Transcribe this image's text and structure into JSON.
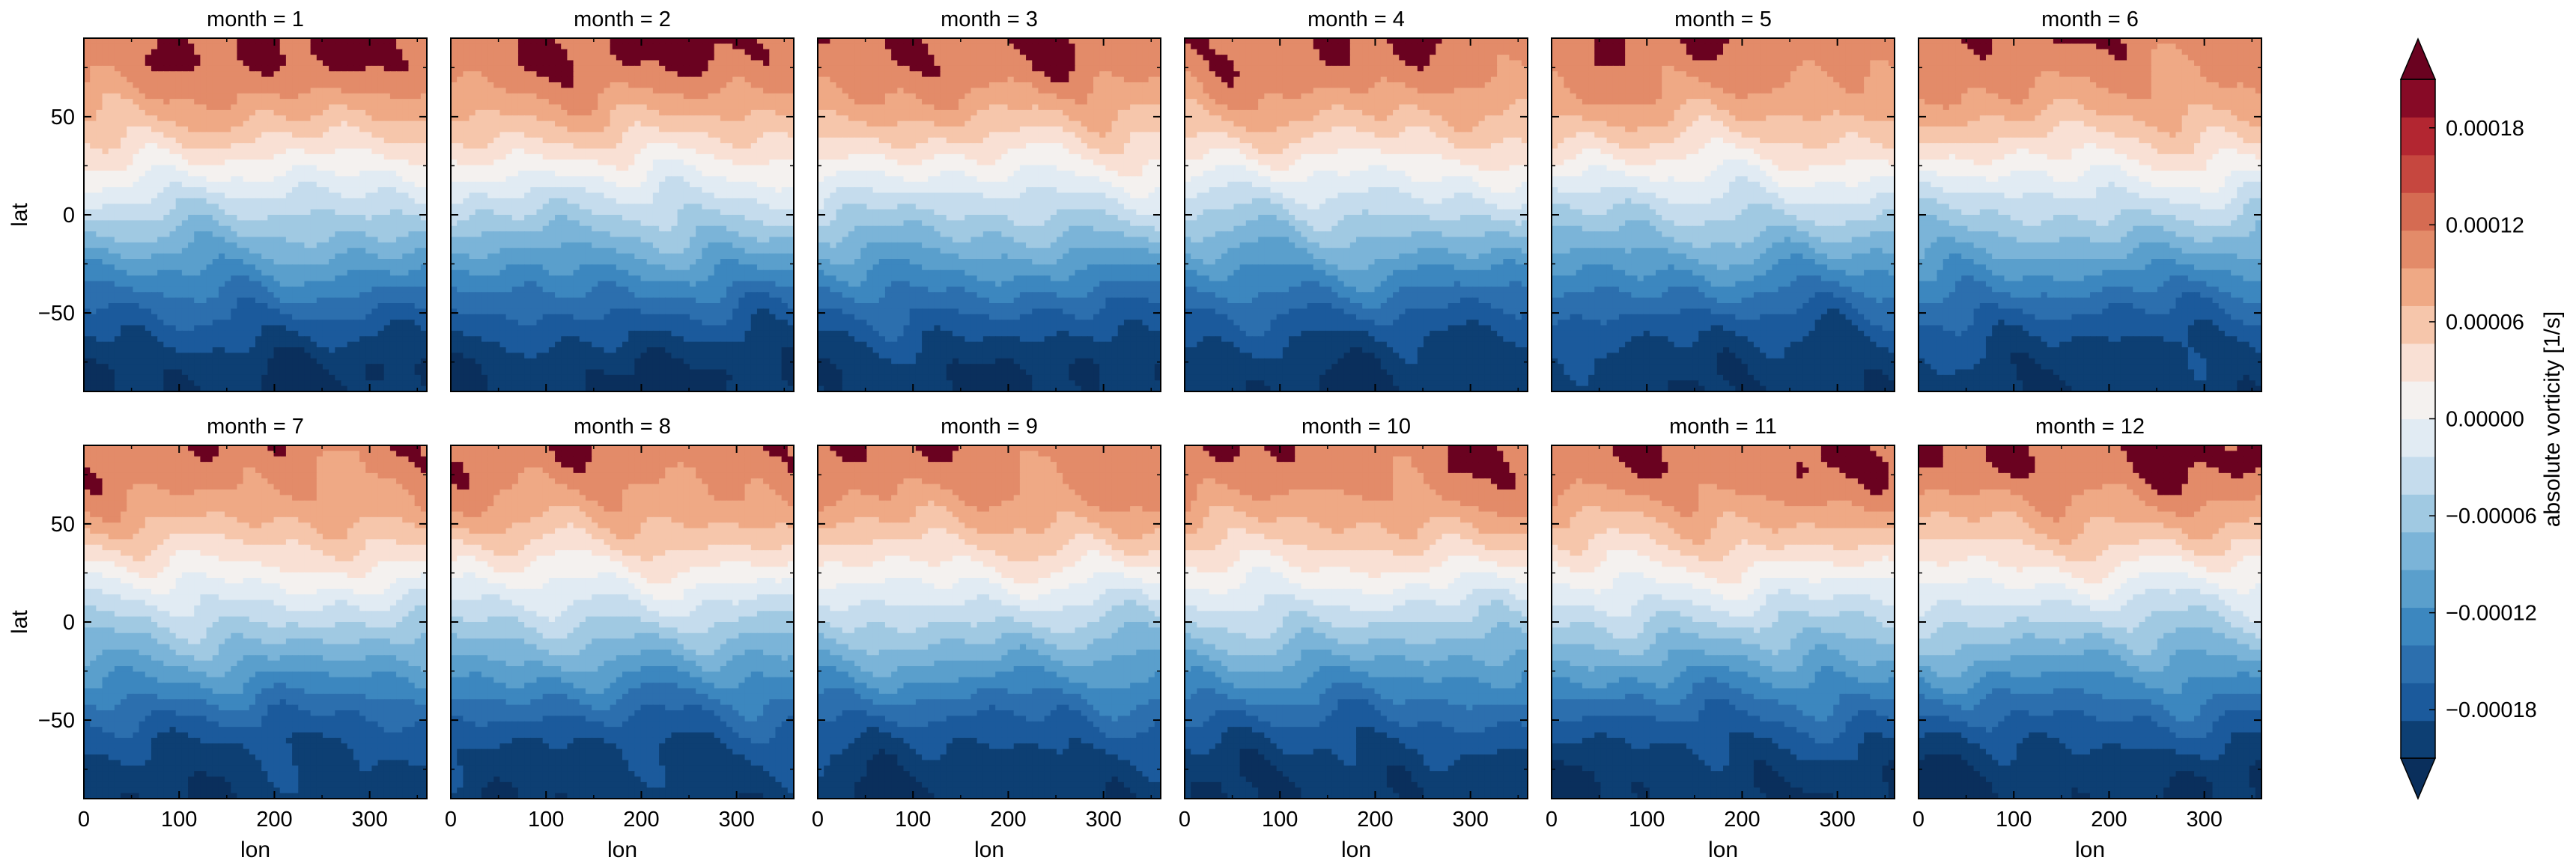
{
  "chart_data": {
    "type": "heatmap",
    "subtype": "filled-contour small multiples",
    "facet_label": "month",
    "panels": [
      {
        "title": "month = 1",
        "month": 1
      },
      {
        "title": "month = 2",
        "month": 2
      },
      {
        "title": "month = 3",
        "month": 3
      },
      {
        "title": "month = 4",
        "month": 4
      },
      {
        "title": "month = 5",
        "month": 5
      },
      {
        "title": "month = 6",
        "month": 6
      },
      {
        "title": "month = 7",
        "month": 7
      },
      {
        "title": "month = 8",
        "month": 8
      },
      {
        "title": "month = 9",
        "month": 9
      },
      {
        "title": "month = 10",
        "month": 10
      },
      {
        "title": "month = 11",
        "month": 11
      },
      {
        "title": "month = 12",
        "month": 12
      }
    ],
    "xlabel": "lon",
    "ylabel": "lat",
    "xlim": [
      0,
      360
    ],
    "ylim": [
      -90,
      90
    ],
    "x_ticks": [
      0,
      100,
      200,
      300
    ],
    "y_ticks": [
      50,
      0,
      -50
    ],
    "x_tick_labels": [
      "0",
      "100",
      "200",
      "300"
    ],
    "y_tick_labels": [
      "50",
      "0",
      "−50"
    ],
    "colorbar": {
      "label": "absolute vorticity [1/s]",
      "extend": "both",
      "levels": [
        -0.00021,
        -0.00018,
        -0.00015,
        -0.00012,
        -9e-05,
        -6e-05,
        -3e-05,
        0.0,
        3e-05,
        6e-05,
        9e-05,
        0.00012,
        0.00015,
        0.00018,
        0.00021
      ],
      "ticks": [
        -0.00018,
        -0.00012,
        -6e-05,
        0.0,
        6e-05,
        0.00012,
        0.00018
      ],
      "tick_labels": [
        "−0.00018",
        "−0.00012",
        "−0.00006",
        "0.00000",
        "0.00006",
        "0.00012",
        "0.00018"
      ],
      "colors": [
        "#0d3f73",
        "#1b5a9c",
        "#2c6fae",
        "#3c87bf",
        "#5a9fcc",
        "#7bb4d8",
        "#a0c9e2",
        "#c5dced",
        "#e1ebf3",
        "#f4f1ef",
        "#f9e0d4",
        "#f6c6ab",
        "#efa985",
        "#e38b69",
        "#d56b52",
        "#c6473f",
        "#b32631",
        "#870a26"
      ],
      "under_color": "#0a2f5c",
      "over_color": "#6a0220"
    }
  }
}
